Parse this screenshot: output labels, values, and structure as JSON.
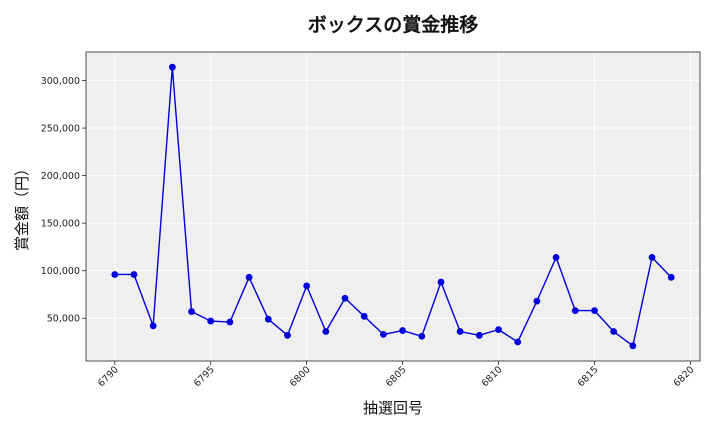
{
  "chart_data": {
    "type": "line",
    "title": "ボックスの賞金推移",
    "xlabel": "抽選回号",
    "ylabel": "賞金額（円）",
    "xlim": [
      6788.5,
      6820.5
    ],
    "ylim": [
      5000,
      330000
    ],
    "xticks": [
      6790,
      6795,
      6800,
      6805,
      6810,
      6815,
      6820
    ],
    "yticks": [
      50000,
      100000,
      150000,
      200000,
      250000,
      300000
    ],
    "xtick_labels": [
      "6790",
      "6795",
      "6800",
      "6805",
      "6810",
      "6815",
      "6820"
    ],
    "ytick_labels": [
      "50,000",
      "100,000",
      "150,000",
      "200,000",
      "250,000",
      "300,000"
    ],
    "grid": true,
    "series": [
      {
        "color": "#0000dd",
        "x": [
          6790,
          6791,
          6792,
          6793,
          6794,
          6795,
          6796,
          6797,
          6798,
          6799,
          6800,
          6801,
          6802,
          6803,
          6804,
          6805,
          6806,
          6807,
          6808,
          6809,
          6810,
          6811,
          6812,
          6813,
          6814,
          6815,
          6816,
          6817,
          6818,
          6819
        ],
        "y": [
          96000,
          96000,
          42000,
          314000,
          57000,
          47000,
          46000,
          93000,
          49000,
          32000,
          84000,
          36000,
          71000,
          52000,
          33000,
          37000,
          31000,
          88000,
          36000,
          32000,
          38000,
          25000,
          68000,
          114000,
          58000,
          58000,
          36000,
          21000,
          114000,
          93000
        ]
      }
    ]
  }
}
